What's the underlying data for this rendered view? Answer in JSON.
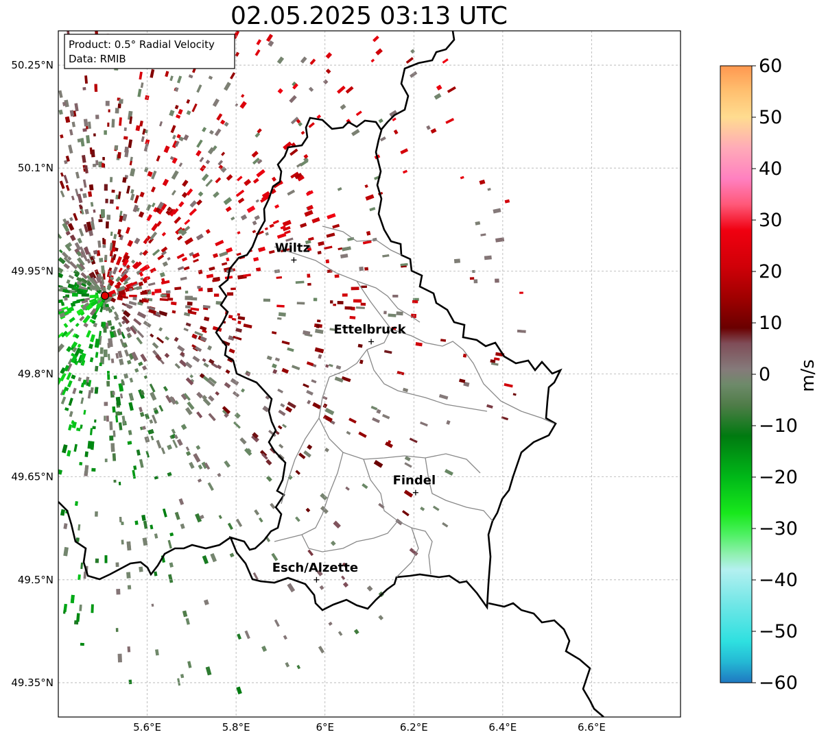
{
  "title": "02.05.2025 03:13 UTC",
  "info_box": {
    "line1": "Product: 0.5° Radial Velocity",
    "line2": "Data: RMIB"
  },
  "map": {
    "lon_range": [
      5.4,
      6.8
    ],
    "lat_range": [
      49.3,
      50.3
    ],
    "lat_ticks": [
      {
        "value": 50.25,
        "label": "50.25°N"
      },
      {
        "value": 50.1,
        "label": "50.1°N"
      },
      {
        "value": 49.95,
        "label": "49.95°N"
      },
      {
        "value": 49.8,
        "label": "49.8°N"
      },
      {
        "value": 49.65,
        "label": "49.65°N"
      },
      {
        "value": 49.5,
        "label": "49.5°N"
      },
      {
        "value": 49.35,
        "label": "49.35°N"
      }
    ],
    "lon_ticks": [
      {
        "value": 5.6,
        "label": "5.6°E"
      },
      {
        "value": 5.8,
        "label": "5.8°E"
      },
      {
        "value": 6.0,
        "label": "6°E"
      },
      {
        "value": 6.2,
        "label": "6.2°E"
      },
      {
        "value": 6.4,
        "label": "6.4°E"
      },
      {
        "value": 6.6,
        "label": "6.6°E"
      }
    ],
    "radar_site": {
      "lon": 5.505,
      "lat": 49.914
    },
    "cities": [
      {
        "name": "Wiltz",
        "lon": 5.93,
        "lat": 49.966
      },
      {
        "name": "Ettelbruck",
        "lon": 6.104,
        "lat": 49.847
      },
      {
        "name": "Findel",
        "lon": 6.204,
        "lat": 49.627
      },
      {
        "name": "Esch/Alzette",
        "lon": 5.981,
        "lat": 49.5
      }
    ]
  },
  "colorbar": {
    "label": "m/s",
    "min": -60,
    "max": 60,
    "ticks": [
      {
        "value": 60,
        "label": "60"
      },
      {
        "value": 50,
        "label": "50"
      },
      {
        "value": 40,
        "label": "40"
      },
      {
        "value": 30,
        "label": "30"
      },
      {
        "value": 20,
        "label": "20"
      },
      {
        "value": 10,
        "label": "10"
      },
      {
        "value": 0,
        "label": "0"
      },
      {
        "value": -10,
        "label": "−10"
      },
      {
        "value": -20,
        "label": "−20"
      },
      {
        "value": -30,
        "label": "−30"
      },
      {
        "value": -40,
        "label": "−40"
      },
      {
        "value": -50,
        "label": "−50"
      },
      {
        "value": -60,
        "label": "−60"
      }
    ],
    "stops": [
      {
        "v": -60,
        "c": "#1f78c1"
      },
      {
        "v": -56,
        "c": "#24b8d4"
      },
      {
        "v": -52,
        "c": "#2ee0e0"
      },
      {
        "v": -45,
        "c": "#6ee6e6"
      },
      {
        "v": -38,
        "c": "#b4f0f0"
      },
      {
        "v": -35,
        "c": "#90f0b0"
      },
      {
        "v": -31,
        "c": "#4cf060"
      },
      {
        "v": -27,
        "c": "#18e81c"
      },
      {
        "v": -20,
        "c": "#00b818"
      },
      {
        "v": -12,
        "c": "#007a10"
      },
      {
        "v": -6,
        "c": "#4f7c48"
      },
      {
        "v": -2,
        "c": "#6e8a6a"
      },
      {
        "v": 1,
        "c": "#857a7a"
      },
      {
        "v": 6,
        "c": "#7f4d58"
      },
      {
        "v": 9,
        "c": "#6a0000"
      },
      {
        "v": 15,
        "c": "#a00000"
      },
      {
        "v": 21,
        "c": "#d00008"
      },
      {
        "v": 28,
        "c": "#f00010"
      },
      {
        "v": 33,
        "c": "#ff5878"
      },
      {
        "v": 38,
        "c": "#ff80c0"
      },
      {
        "v": 44,
        "c": "#ffaab8"
      },
      {
        "v": 50,
        "c": "#ffdc90"
      },
      {
        "v": 55,
        "c": "#ffc070"
      },
      {
        "v": 60,
        "c": "#ff9850"
      }
    ]
  },
  "colors": {
    "border": "#000000",
    "canton_border": "#888888",
    "grid": "#b0b0b0",
    "radar_marker": "#e00000"
  }
}
